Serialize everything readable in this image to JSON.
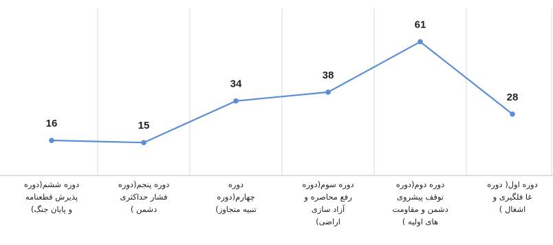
{
  "chart_data": {
    "type": "line",
    "categories": [
      "دوره ششم(دوره پذیرش قطعنامه و پایان جنگ)",
      "دوره پنجم(دوره فشار حداکثری دشمن )",
      "دوره چهارم(دوره تنبیه متجاوز)",
      "دوره سوم(دوره رفع محاصره و آزاد سازی اراضی)",
      "دوره دوم(دوره توقف پیشروی دشمن و مقاومت های اولیه )",
      "دوره اول( دوره غا فلگیری و اشغال )"
    ],
    "category_lines": [
      [
        "دوره ششم(دوره",
        "پذیرش قطعنامه",
        "و پایان جنگ)"
      ],
      [
        "دوره پنجم(دوره",
        "فشار حداکثری",
        "دشمن )"
      ],
      [
        "دوره",
        "چهارم(دوره",
        "تنبیه متجاوز)"
      ],
      [
        "دوره سوم(دوره",
        "رفع محاصره و",
        "آزاد سازی",
        "اراضی)"
      ],
      [
        "دوره دوم(دوره",
        "توقف پیشروی",
        "دشمن و مقاومت",
        "های اولیه )"
      ],
      [
        "دوره اول( دوره",
        "غا فلگیری و",
        "اشغال )"
      ]
    ],
    "values": [
      16,
      15,
      34,
      38,
      61,
      28
    ],
    "ylim": [
      0,
      70
    ],
    "grid": "vertical",
    "line_color": "#5b8ed4",
    "marker_color": "#5b8ed4",
    "grid_color": "#d9d9d9",
    "axis_color": "#bfbfbf",
    "title": "",
    "xlabel": "",
    "ylabel": ""
  }
}
